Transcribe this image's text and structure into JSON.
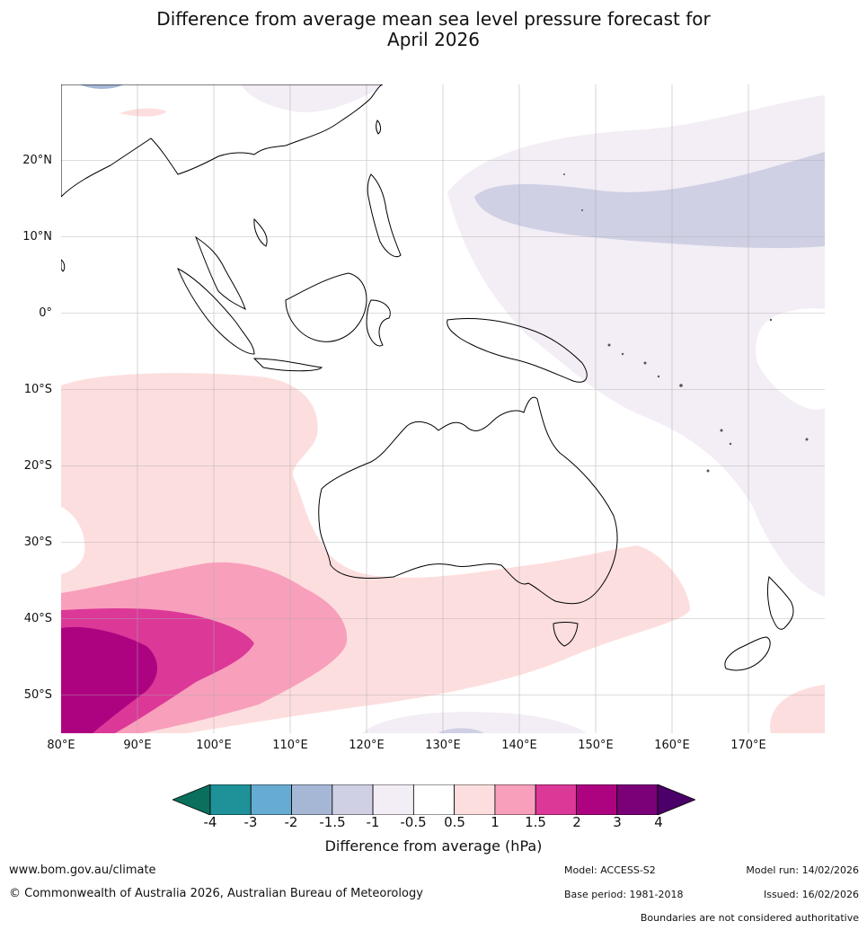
{
  "title_line1": "Difference from average mean sea level pressure forecast for",
  "title_line2": "April 2026",
  "map": {
    "latitude_labels": [
      "20°N",
      "10°N",
      "0°",
      "10°S",
      "20°S",
      "30°S",
      "40°S",
      "50°S"
    ],
    "longitude_labels": [
      "80°E",
      "90°E",
      "100°E",
      "110°E",
      "120°E",
      "130°E",
      "140°E",
      "150°E",
      "160°E",
      "170°E"
    ],
    "extent": {
      "lon_min": 80,
      "lon_max": 180,
      "lat_min": -55,
      "lat_max": 30
    }
  },
  "colorbar": {
    "ticks": [
      "-4",
      "-3",
      "-2",
      "-1.5",
      "-1",
      "-0.5",
      "0.5",
      "1",
      "1.5",
      "2",
      "3",
      "4"
    ],
    "colors": [
      "#0a6f5c",
      "#1f9198",
      "#66abd1",
      "#a6b7d6",
      "#cfd0e4",
      "#f3edf5",
      "#ffffff",
      "#fddede",
      "#f89fbc",
      "#dc3898",
      "#ae0381",
      "#7a0177",
      "#4a0068"
    ],
    "label": "Difference from average (hPa)"
  },
  "footer": {
    "website": "www.bom.gov.au/climate",
    "copyright": "© Commonwealth of Australia 2026, Australian Bureau of Meteorology",
    "model": "Model: ACCESS-S2",
    "base_period": "Base period: 1981-2018",
    "model_run": "Model run: 14/02/2026",
    "issued": "Issued: 16/02/2026",
    "disclaimer": "Boundaries are not considered authoritative"
  }
}
